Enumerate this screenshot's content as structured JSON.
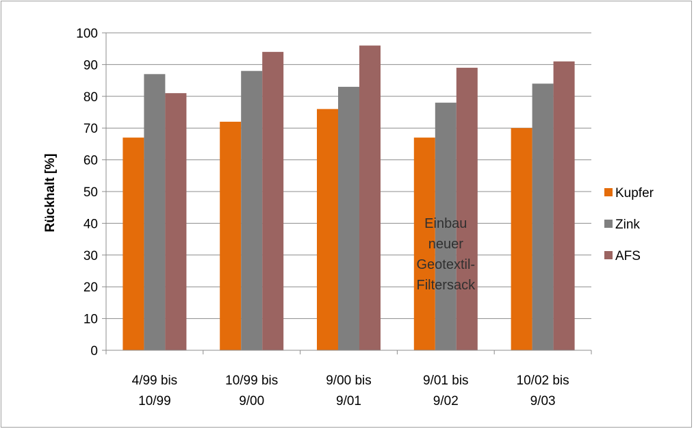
{
  "chart_data": {
    "type": "bar",
    "categories": [
      [
        "4/99 bis",
        "10/99"
      ],
      [
        "10/99 bis",
        "9/00"
      ],
      [
        "9/00 bis",
        "9/01"
      ],
      [
        "9/01 bis",
        "9/02"
      ],
      [
        "10/02 bis",
        "9/03"
      ]
    ],
    "series": [
      {
        "name": "Kupfer",
        "color": "#e46c0a",
        "values": [
          67,
          72,
          76,
          67,
          70
        ]
      },
      {
        "name": "Zink",
        "color": "#7f7f7f",
        "values": [
          87,
          88,
          83,
          78,
          84
        ]
      },
      {
        "name": "AFS",
        "color": "#9b6461",
        "values": [
          81,
          94,
          96,
          89,
          91
        ]
      }
    ],
    "title": "",
    "xlabel": "",
    "ylabel": "Rückhalt [%]",
    "ylim": [
      0,
      100
    ],
    "yticks": [
      0,
      10,
      20,
      30,
      40,
      50,
      60,
      70,
      80,
      90,
      100
    ],
    "grid": true,
    "legend_position": "right",
    "annotation": {
      "category_index": 3,
      "lines": [
        "Einbau",
        "neuer",
        "Geotextil-",
        "Filtersack"
      ]
    }
  }
}
